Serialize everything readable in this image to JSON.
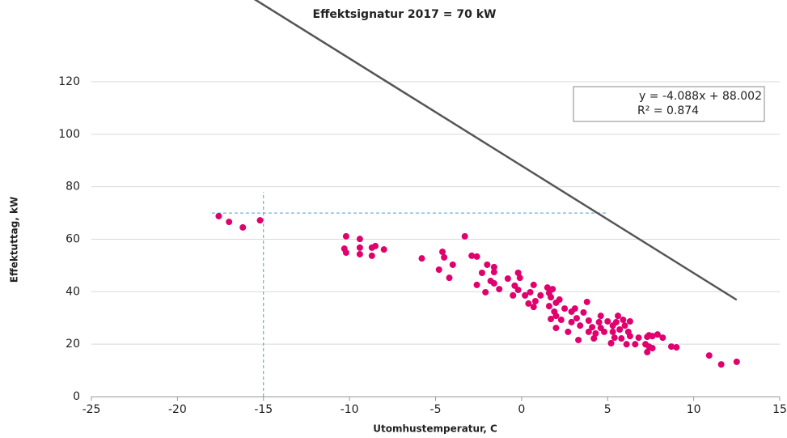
{
  "chart_data": {
    "type": "scatter",
    "title": "Effektsignatur 2017 = 70 kW",
    "xlabel": "Utomhustemperatur, C",
    "ylabel": "Effektuttag, kW",
    "xlim": [
      -25,
      15
    ],
    "xticks": [
      -25,
      -20,
      -15,
      -10,
      -5,
      0,
      5,
      10,
      15
    ],
    "ylim": [
      0,
      120
    ],
    "yticks": [
      0,
      20,
      40,
      60,
      80,
      100,
      120
    ],
    "grid": true,
    "color": "#e0006e",
    "x": [
      -17.6,
      -17.0,
      -16.2,
      -15.2,
      -10.2,
      -9.4,
      -10.3,
      -10.2,
      -9.4,
      -9.4,
      -8.7,
      -8.5,
      -8.0,
      -8.7,
      -5.8,
      -4.6,
      -4.5,
      -4.8,
      -4.0,
      -4.2,
      -3.3,
      -2.9,
      -2.6,
      -2.6,
      -2.3,
      -2.0,
      -1.6,
      -1.6,
      -1.8,
      -1.6,
      -2.1,
      -1.3,
      -0.8,
      -0.2,
      -0.1,
      -0.4,
      -0.2,
      -0.5,
      0.2,
      0.5,
      0.7,
      0.4,
      0.7,
      0.8,
      1.1,
      1.5,
      1.8,
      1.6,
      1.7,
      2.0,
      2.2,
      1.6,
      1.9,
      1.7,
      2.0,
      2.3,
      2.0,
      2.5,
      2.9,
      3.1,
      3.2,
      2.9,
      2.7,
      3.4,
      3.6,
      3.8,
      3.9,
      4.1,
      3.9,
      4.3,
      4.5,
      4.6,
      4.2,
      4.8,
      4.6,
      5.0,
      5.3,
      5.3,
      5.5,
      5.7,
      5.4,
      5.2,
      5.8,
      6.0,
      6.3,
      6.2,
      6.3,
      6.1,
      6.6,
      6.8,
      7.3,
      7.4,
      7.6,
      7.2,
      7.4,
      7.6,
      7.3,
      7.9,
      8.2,
      8.7,
      9.0,
      10.9,
      11.6,
      12.5,
      5.9,
      5.6,
      3.3
    ],
    "values": [
      68.8,
      66.6,
      64.5,
      67.2,
      61.1,
      60.1,
      56.4,
      54.9,
      56.8,
      54.3,
      56.8,
      57.4,
      56.1,
      53.7,
      52.7,
      55.2,
      53.1,
      48.4,
      50.3,
      45.3,
      61.1,
      53.7,
      53.4,
      42.6,
      47.2,
      50.3,
      49.4,
      47.5,
      44.1,
      43.2,
      39.8,
      41.0,
      45.0,
      47.2,
      45.3,
      42.3,
      40.7,
      38.6,
      38.6,
      39.8,
      42.6,
      35.5,
      34.2,
      36.4,
      38.6,
      41.6,
      41.0,
      39.5,
      37.9,
      35.8,
      37.0,
      34.5,
      32.4,
      29.6,
      30.8,
      29.3,
      26.2,
      33.6,
      32.4,
      33.6,
      29.9,
      28.4,
      24.7,
      27.1,
      32.1,
      36.1,
      29.0,
      26.5,
      24.7,
      24.1,
      28.4,
      26.2,
      22.2,
      24.7,
      30.8,
      28.7,
      27.1,
      24.7,
      28.4,
      25.6,
      22.5,
      20.4,
      22.2,
      27.1,
      28.7,
      24.7,
      23.1,
      20.0,
      20.0,
      22.5,
      22.8,
      23.4,
      23.1,
      20.0,
      19.1,
      18.5,
      17.0,
      23.7,
      22.5,
      19.1,
      18.8,
      15.7,
      12.3,
      13.3,
      29.3,
      30.8,
      21.6
    ],
    "trendline": {
      "equation": "y = -4.088x + 88.002",
      "r2_label": "R² = 0.874",
      "slope": -4.088,
      "intercept": 88.002,
      "x": [
        -25,
        12.5
      ],
      "color": "#555555"
    },
    "reference_lines": {
      "color": "#4a9fd8",
      "vline": {
        "x": -15,
        "ylim": [
          0,
          78
        ]
      },
      "hline": {
        "y": 70,
        "xlim": [
          -18,
          5
        ]
      }
    }
  }
}
